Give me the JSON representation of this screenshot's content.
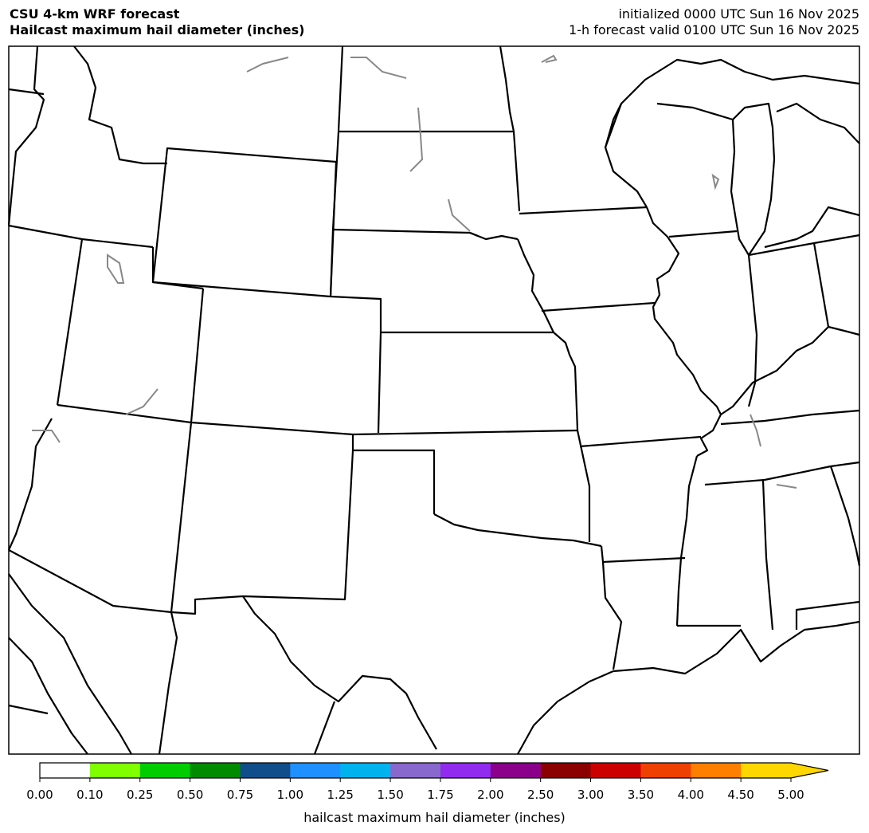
{
  "header": {
    "title_line1": "CSU 4-km WRF forecast",
    "title_line2": "Hailcast maximum hail diameter (inches)",
    "init_line": "initialized 0000 UTC Sun 16 Nov 2025",
    "valid_line": "1-h forecast valid 0100 UTC Sun 16 Nov 2025"
  },
  "colorbar": {
    "label": "hailcast maximum hail diameter (inches)",
    "ticks": [
      "0.00",
      "0.10",
      "0.25",
      "0.50",
      "0.75",
      "1.00",
      "1.25",
      "1.50",
      "1.75",
      "2.00",
      "2.50",
      "3.00",
      "3.50",
      "4.00",
      "4.50",
      "5.00"
    ],
    "colors": [
      "#ffffff",
      "#7fff00",
      "#00cd00",
      "#008b00",
      "#104e8b",
      "#1e90ff",
      "#00b2ee",
      "#8968cd",
      "#912cee",
      "#8b008b",
      "#8b0000",
      "#cd0000",
      "#ee4000",
      "#ff7f00",
      "#ffd700"
    ],
    "extend_color": "#ffd700",
    "extend": "max"
  }
}
